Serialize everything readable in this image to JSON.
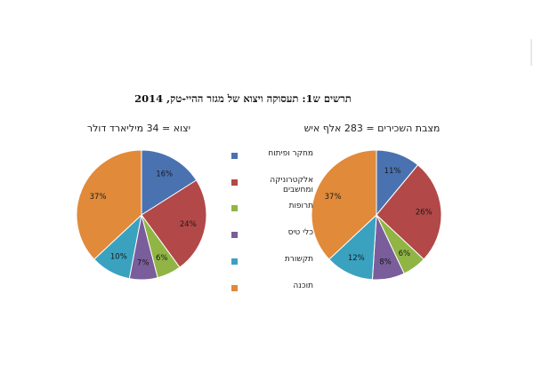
{
  "figure_title": "תרשים ש1: תעסוקה ויצוא של מגזר ההיי-טק, 2014",
  "colors": {
    "research": "#4a72b0",
    "electronics": "#b24848",
    "pharma": "#90b545",
    "instruments": "#7a5d9b",
    "communications": "#3aa2bf",
    "software": "#e08a3a"
  },
  "legend": [
    {
      "label": "מחקר ופיתוח",
      "color_key": "research"
    },
    {
      "label": "אלקטרוניקה ומחשבים",
      "color_key": "electronics"
    },
    {
      "label": "תרופות",
      "color_key": "pharma"
    },
    {
      "label": "כלי טיס",
      "color_key": "instruments"
    },
    {
      "label": "תקשורת",
      "color_key": "communications"
    },
    {
      "label": "תוכנה",
      "color_key": "software"
    }
  ],
  "chart_data": [
    {
      "type": "pie",
      "title": "יצוא = 34 מיליארד דולר",
      "categories": [
        "מחקר ופיתוח",
        "אלקטרוניקה ומחשבים",
        "תרופות",
        "כלי טיס",
        "תקשורת",
        "תוכנה"
      ],
      "values": [
        16,
        24,
        6,
        7,
        10,
        37
      ],
      "data_labels": [
        "16%",
        "24%",
        "6%",
        "7%",
        "10%",
        "37%"
      ]
    },
    {
      "type": "pie",
      "title": "מצבת השכירים = 283 אלף איש",
      "categories": [
        "מחקר ופיתוח",
        "אלקטרוניקה ומחשבים",
        "תרופות",
        "כלי טיס",
        "תקשורת",
        "תוכנה"
      ],
      "values": [
        11,
        26,
        6,
        8,
        12,
        37
      ],
      "data_labels": [
        "11%",
        "26%",
        "6%",
        "8%",
        "12%",
        "37%"
      ]
    }
  ]
}
